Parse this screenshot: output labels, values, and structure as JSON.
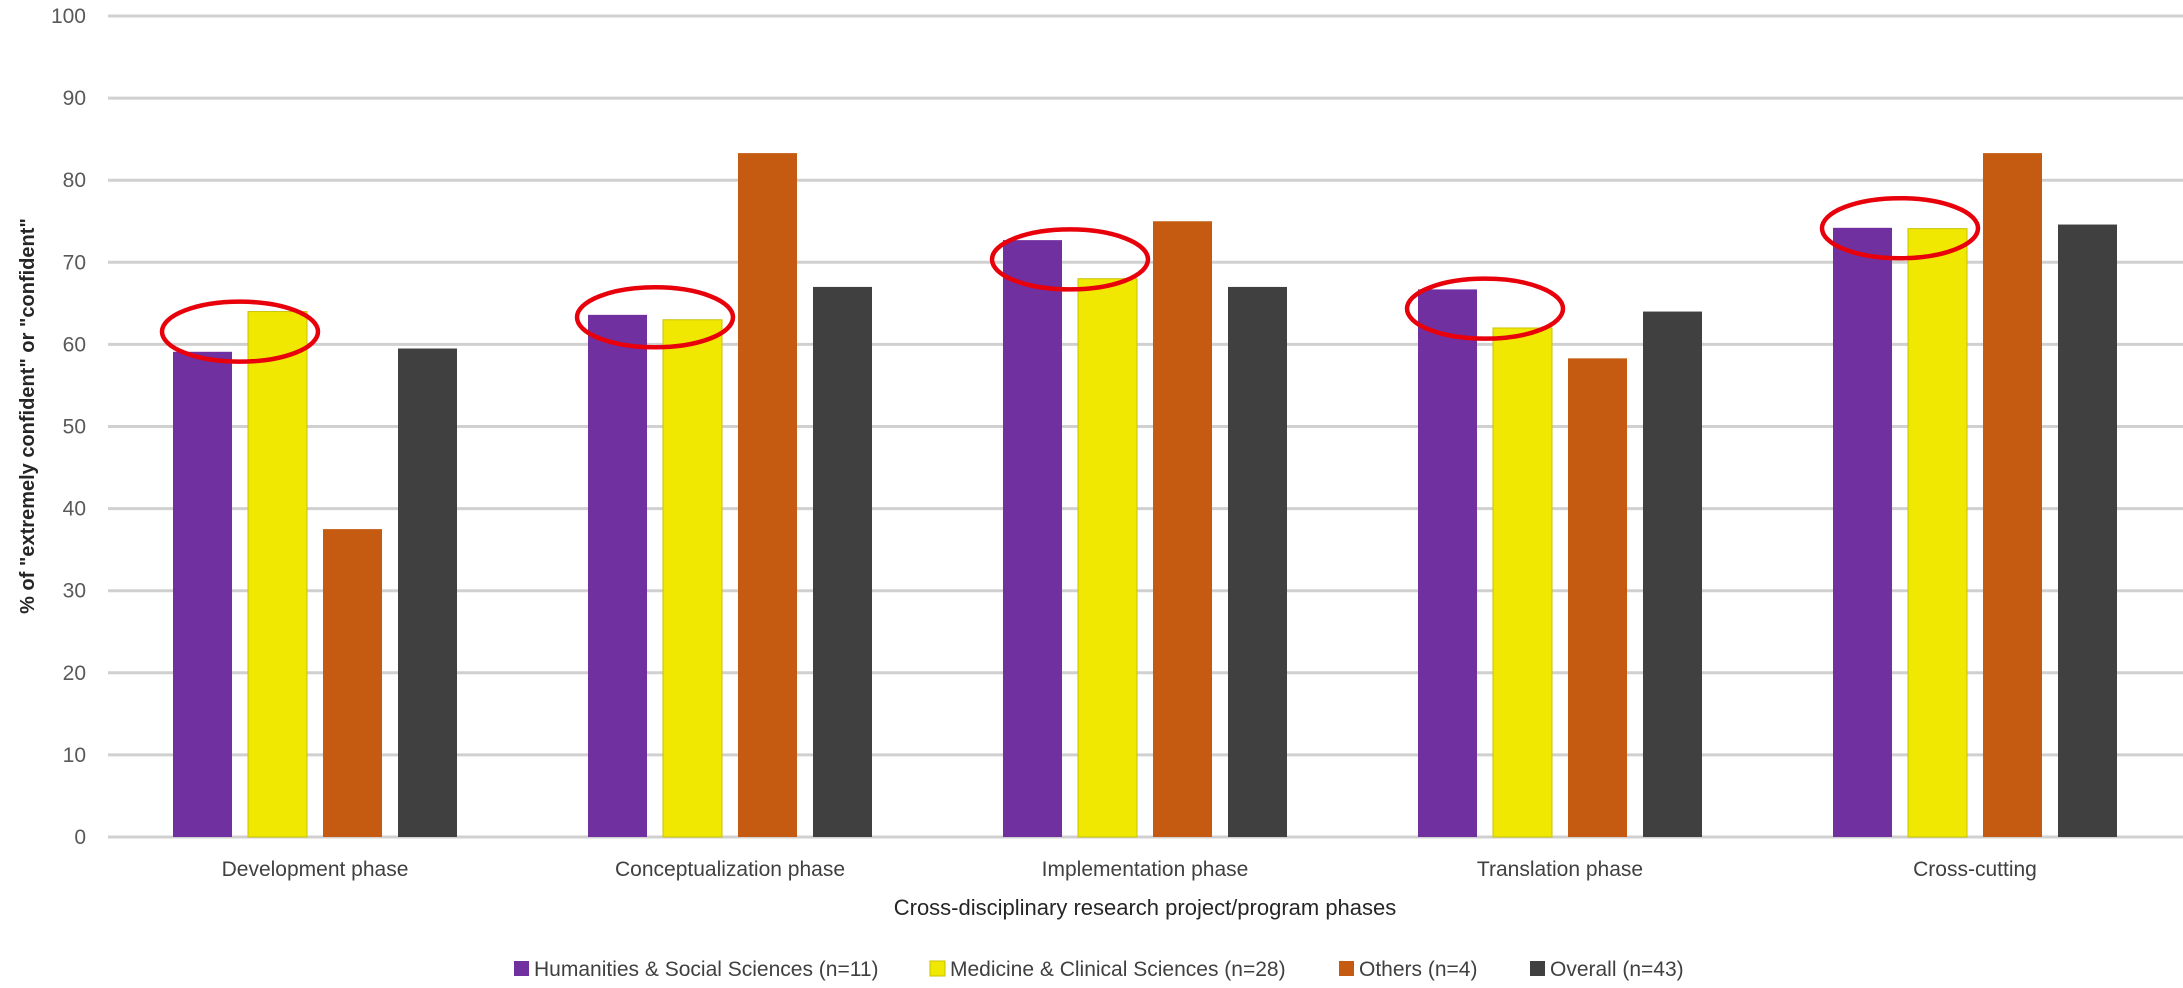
{
  "chart_data": {
    "type": "bar",
    "title": "",
    "xlabel": "Cross-disciplinary research project/program phases",
    "ylabel": "% of \"extremely confident\" or \"confident\"",
    "ylim": [
      0,
      100
    ],
    "yticks": [
      0,
      10,
      20,
      30,
      40,
      50,
      60,
      70,
      80,
      90,
      100
    ],
    "grid": true,
    "legend_position": "bottom",
    "categories": [
      "Development phase",
      "Conceptualization phase",
      "Implementation phase",
      "Translation phase",
      "Cross-cutting"
    ],
    "series": [
      {
        "name": "Humanities & Social Sciences (n=11)",
        "color": "#7030a0",
        "values": [
          59.1,
          63.6,
          72.7,
          66.7,
          74.2
        ]
      },
      {
        "name": "Medicine & Clinical Sciences (n=28)",
        "color": "#f0e800",
        "values": [
          64.0,
          63.0,
          68.0,
          62.0,
          74.1
        ]
      },
      {
        "name": "Others (n=4)",
        "color": "#c55a11",
        "values": [
          37.5,
          83.3,
          75.0,
          58.3,
          83.3
        ]
      },
      {
        "name": "Overall (n=43)",
        "color": "#404040",
        "values": [
          59.5,
          67.0,
          67.0,
          64.0,
          74.6
        ]
      }
    ],
    "annotations": {
      "shape": "ellipse",
      "color": "#e8000b",
      "description_of_placement": "around top of first two bars in each group",
      "categories": [
        "Development phase",
        "Conceptualization phase",
        "Implementation phase",
        "Translation phase",
        "Cross-cutting"
      ]
    }
  }
}
